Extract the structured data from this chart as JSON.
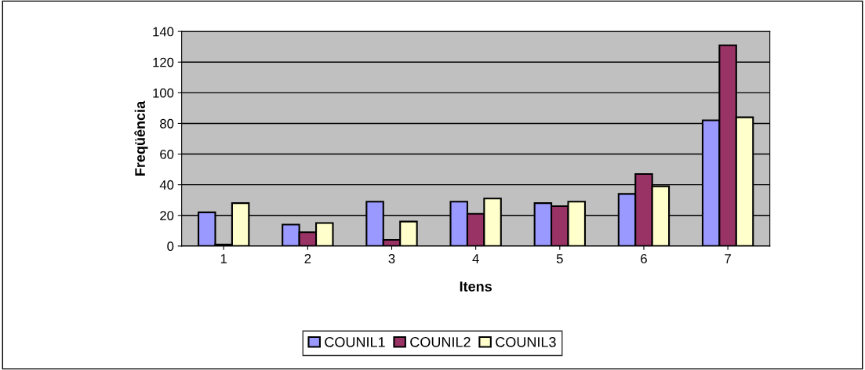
{
  "chart_data": {
    "type": "bar",
    "xlabel": "Itens",
    "ylabel": "Freqüência",
    "categories": [
      "1",
      "2",
      "3",
      "4",
      "5",
      "6",
      "7"
    ],
    "series": [
      {
        "name": "COUNIL1",
        "color": "#9999ff",
        "values": [
          22,
          14,
          29,
          29,
          28,
          34,
          82
        ]
      },
      {
        "name": "COUNIL2",
        "color": "#993366",
        "values": [
          1,
          9,
          4,
          21,
          26,
          47,
          131
        ]
      },
      {
        "name": "COUNIL3",
        "color": "#ffffcc",
        "values": [
          28,
          15,
          16,
          31,
          29,
          39,
          84
        ]
      }
    ],
    "ylim": [
      0,
      140
    ],
    "yticks": [
      0,
      20,
      40,
      60,
      80,
      100,
      120,
      140
    ],
    "grid": "y",
    "legend": "bottom"
  }
}
